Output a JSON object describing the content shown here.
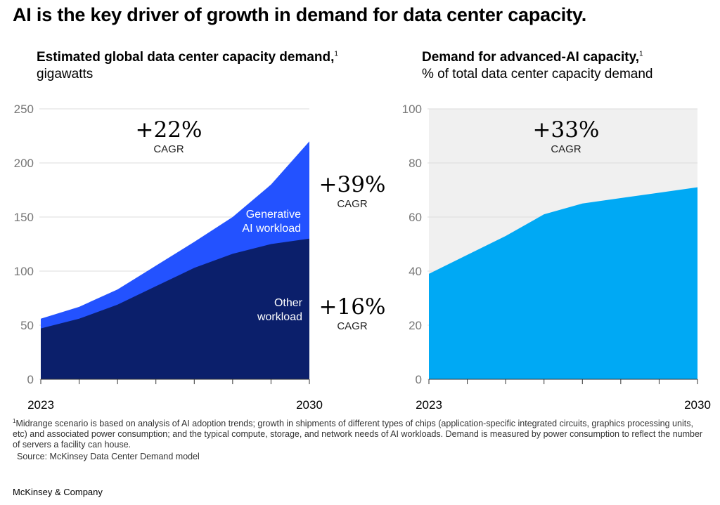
{
  "headline": "AI is the key driver of growth in demand for data center capacity.",
  "footnote": {
    "marker": "1",
    "text": "Midrange scenario is based on analysis of AI adoption trends; growth in shipments of different types of chips (application-specific integrated circuits, graphics processing units, etc) and associated power consumption; and the typical compute, storage, and network needs of AI workloads. Demand is measured by power consumption to reflect the number of servers a facility can house.",
    "source": "Source: McKinsey Data Center Demand model"
  },
  "brand": "McKinsey & Company",
  "colors": {
    "other_workload": "#0b1f6b",
    "generative_ai": "#2352ff",
    "ai_share": "#00a9f4",
    "background_band": "#f0f0f0",
    "grid": "#dddddd",
    "axis_text": "#777777"
  },
  "chart_data": [
    {
      "type": "area",
      "stacked": true,
      "title": "Estimated global data center capacity demand,",
      "title_sup": "1",
      "unit": "gigawatts",
      "x": [
        2023,
        2024,
        2025,
        2026,
        2027,
        2028,
        2029,
        2030
      ],
      "x_tick_labels": [
        "2023",
        "2030"
      ],
      "y_ticks": [
        "0",
        "50",
        "100",
        "150",
        "200",
        "250"
      ],
      "ylim": [
        0,
        250
      ],
      "grid": true,
      "series": [
        {
          "name": "Other workload",
          "values": [
            47,
            56,
            69,
            86,
            103,
            116,
            125,
            130
          ],
          "color": "#0b1f6b"
        },
        {
          "name": "Generative AI workload",
          "values": [
            9,
            11,
            14,
            19,
            24,
            34,
            55,
            90
          ],
          "color": "#2352ff"
        }
      ],
      "annotations": [
        {
          "value": "+22%",
          "label": "CAGR",
          "refers_to": "total"
        },
        {
          "value": "+39%",
          "label": "CAGR",
          "refers_to": "Generative AI workload"
        },
        {
          "value": "+16%",
          "label": "CAGR",
          "refers_to": "Other workload"
        }
      ]
    },
    {
      "type": "area",
      "title": "Demand for advanced-AI capacity,",
      "title_sup": "1",
      "unit": "% of total data center capacity demand",
      "x": [
        2023,
        2024,
        2025,
        2026,
        2027,
        2028,
        2029,
        2030
      ],
      "x_tick_labels": [
        "2023",
        "2030"
      ],
      "y_ticks": [
        "0",
        "20",
        "40",
        "60",
        "80",
        "100"
      ],
      "ylim": [
        0,
        100
      ],
      "grid": true,
      "series": [
        {
          "name": "",
          "values": [
            39,
            46,
            53,
            61,
            65,
            67,
            69,
            71
          ],
          "color": "#00a9f4"
        }
      ],
      "annotations": [
        {
          "value": "+33%",
          "label": "CAGR",
          "refers_to": "series"
        }
      ]
    }
  ]
}
